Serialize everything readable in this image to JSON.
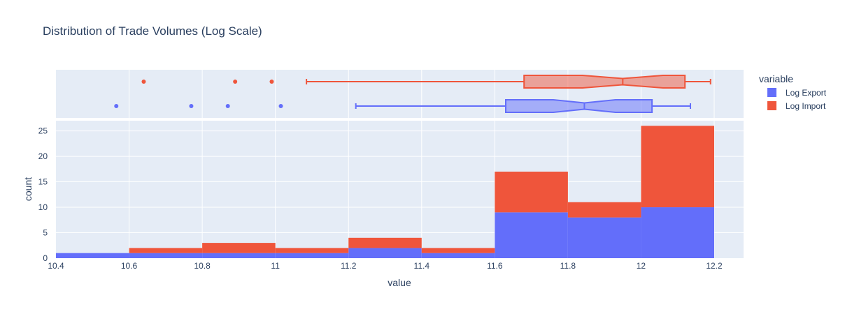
{
  "chart_data": {
    "type": "histogram",
    "title": "Distribution of Trade Volumes (Log Scale)",
    "xlabel": "value",
    "ylabel": "count",
    "barmode": "stack",
    "xlim": [
      10.4,
      12.2
    ],
    "ylim": [
      0,
      27
    ],
    "x_ticks": [
      "10.4",
      "10.6",
      "10.8",
      "11",
      "11.2",
      "11.4",
      "11.6",
      "11.8",
      "12",
      "12.2"
    ],
    "y_ticks": [
      "0",
      "5",
      "10",
      "15",
      "20",
      "25"
    ],
    "bins": [
      [
        10.4,
        10.6
      ],
      [
        10.6,
        10.8
      ],
      [
        10.8,
        11.0
      ],
      [
        11.0,
        11.2
      ],
      [
        11.2,
        11.4
      ],
      [
        11.4,
        11.6
      ],
      [
        11.6,
        11.8
      ],
      [
        11.8,
        12.0
      ],
      [
        12.0,
        12.2
      ]
    ],
    "legend": {
      "title": "variable",
      "position": "top-right"
    },
    "series": [
      {
        "name": "Log Export",
        "color": "#636efa",
        "counts": [
          1,
          1,
          1,
          1,
          2,
          1,
          9,
          8,
          10
        ],
        "box": {
          "min": 11.22,
          "q1": 11.63,
          "median": 11.845,
          "q3": 12.03,
          "max": 12.135,
          "notch_low": 11.76,
          "notch_high": 11.93
        },
        "outliers": [
          10.565,
          10.77,
          10.87,
          11.015
        ]
      },
      {
        "name": "Log Import",
        "color": "#ef553b",
        "counts": [
          0,
          1,
          2,
          1,
          2,
          1,
          8,
          3,
          16
        ],
        "box": {
          "min": 11.085,
          "q1": 11.68,
          "median": 11.95,
          "q3": 12.12,
          "max": 12.19,
          "notch_low": 11.84,
          "notch_high": 12.06
        },
        "outliers": [
          10.64,
          10.89,
          10.99
        ]
      }
    ]
  }
}
